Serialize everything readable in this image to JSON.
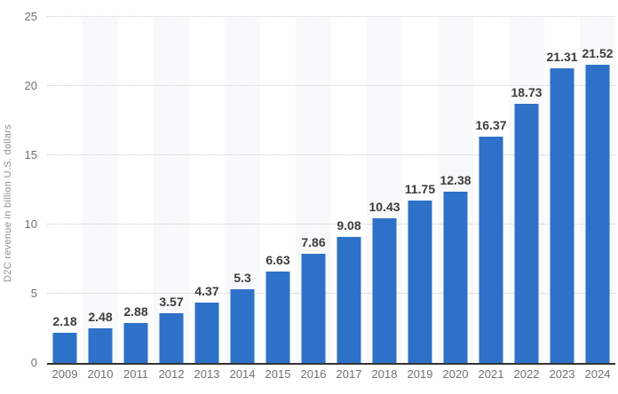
{
  "chart_data": {
    "type": "bar",
    "title": "",
    "xlabel": "",
    "ylabel": "D2C revenue in billion U.S. dollars",
    "categories": [
      "2009",
      "2010",
      "2011",
      "2012",
      "2013",
      "2014",
      "2015",
      "2016",
      "2017",
      "2018",
      "2019",
      "2020",
      "2021",
      "2022",
      "2023",
      "2024"
    ],
    "values": [
      2.18,
      2.48,
      2.88,
      3.57,
      4.37,
      5.3,
      6.63,
      7.86,
      9.08,
      10.43,
      11.75,
      12.38,
      16.37,
      18.73,
      21.31,
      21.52
    ],
    "value_labels": [
      "2.18",
      "2.48",
      "2.88",
      "3.57",
      "4.37",
      "5.3",
      "6.63",
      "7.86",
      "9.08",
      "10.43",
      "11.75",
      "12.38",
      "16.37",
      "18.73",
      "21.31",
      "21.52"
    ],
    "ylim": [
      0,
      25
    ],
    "yticks": [
      0,
      5,
      10,
      15,
      20,
      25
    ],
    "grid": "horizontal-dotted",
    "legend": "none",
    "band_pattern": "alternating columns shaded starting with second column",
    "colors": {
      "bar": "#2d71c8",
      "band": "#f8f9fa",
      "grid": "#cccccc",
      "axis_line": "#333333",
      "tick_label": "#6f7072",
      "value_label": "#3c3c3c",
      "axis_title": "#8e9093",
      "background": "#ffffff"
    }
  }
}
